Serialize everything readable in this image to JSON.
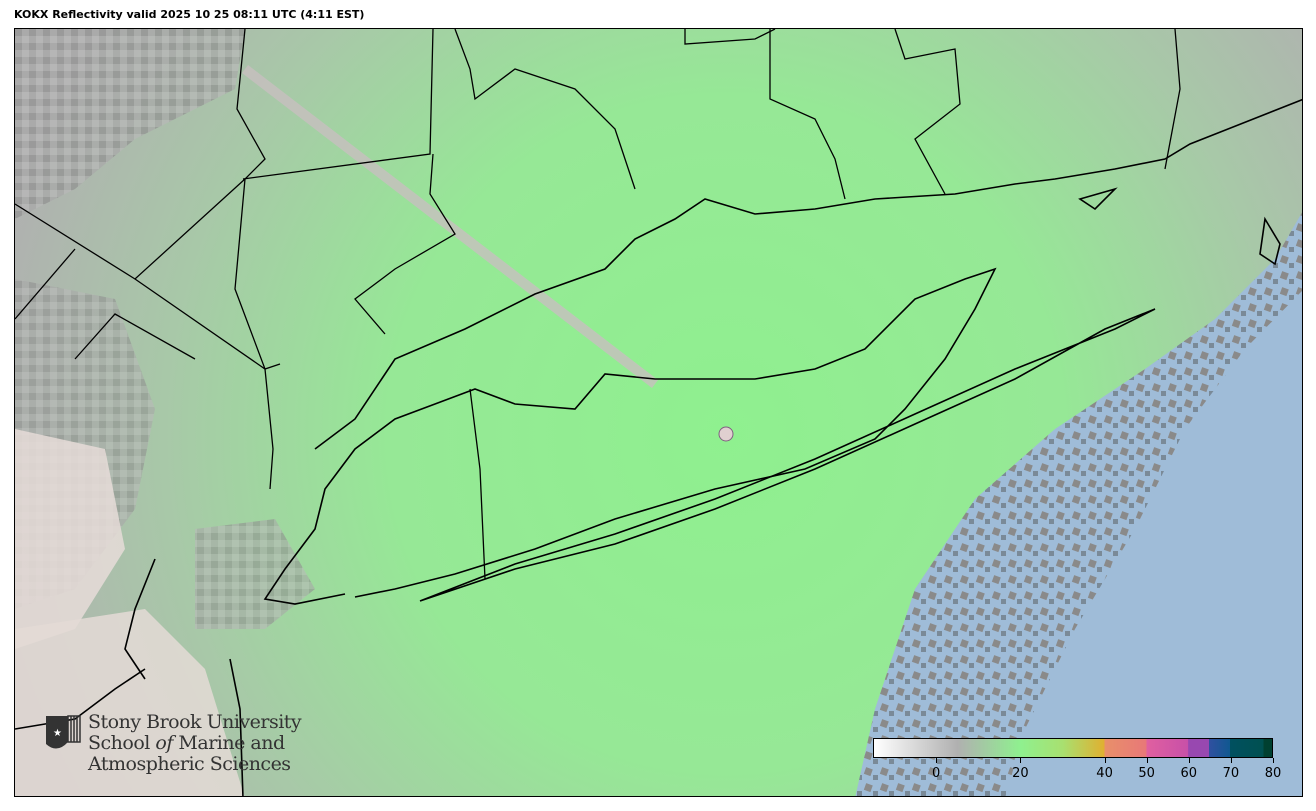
{
  "title": "KOKX Reflectivity valid 2025 10 25 08:11 UTC (4:11 EST)",
  "map": {
    "radar_site": "KOKX",
    "colors": {
      "ocean": "#9fbcd8",
      "echo_green": "#90ee90",
      "clutter_gray": "#a9a9a9",
      "land_relief": "#e8dcd8",
      "boundaries": "#000000"
    }
  },
  "colorbar": {
    "range": [
      -15,
      80
    ],
    "ticks": [
      0,
      20,
      40,
      50,
      60,
      70,
      80
    ],
    "tick_labels": [
      "0",
      "20",
      "40",
      "50",
      "60",
      "70",
      "80"
    ],
    "stops": [
      {
        "v": -15,
        "c": "#ffffff"
      },
      {
        "v": 5,
        "c": "#b0b0b0"
      },
      {
        "v": 20,
        "c": "#8ff08f"
      },
      {
        "v": 30,
        "c": "#a8e070"
      },
      {
        "v": 40,
        "c": "#e0b030"
      },
      {
        "v": 40.01,
        "c": "#e8906a"
      },
      {
        "v": 50,
        "c": "#e87878"
      },
      {
        "v": 50.01,
        "c": "#e060a0"
      },
      {
        "v": 60,
        "c": "#c850a8"
      },
      {
        "v": 60.01,
        "c": "#9848b0"
      },
      {
        "v": 65,
        "c": "#9848b0"
      },
      {
        "v": 65.01,
        "c": "#3050a0"
      },
      {
        "v": 70,
        "c": "#105890"
      },
      {
        "v": 70.01,
        "c": "#005060"
      },
      {
        "v": 78,
        "c": "#005050"
      },
      {
        "v": 78.01,
        "c": "#004030"
      },
      {
        "v": 80,
        "c": "#004030"
      }
    ]
  },
  "logo": {
    "line1": "Stony Brook University",
    "line2_a": "School ",
    "line2_b": "of",
    "line2_c": " Marine and",
    "line3": "Atmospheric Sciences"
  }
}
